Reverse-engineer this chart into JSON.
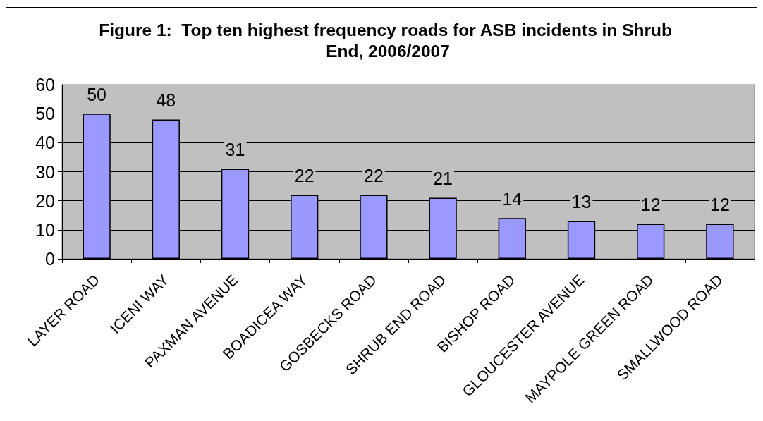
{
  "chart_data": {
    "type": "bar",
    "title": "Figure 1:  Top ten highest frequency roads for ASB incidents in Shrub End, 2006/2007",
    "categories": [
      "LAYER ROAD",
      "ICENI WAY",
      "PAXMAN AVENUE",
      "BOADICEA WAY",
      "GOSBECKS ROAD",
      "SHRUB END ROAD",
      "BISHOP ROAD",
      "GLOUCESTER AVENUE",
      "MAYPOLE GREEN ROAD",
      "SMALLWOOD ROAD"
    ],
    "values": [
      50,
      48,
      31,
      22,
      22,
      21,
      14,
      13,
      12,
      12
    ],
    "color": "#9999ff",
    "ylim": [
      0,
      60
    ],
    "yticks": [
      0,
      10,
      20,
      30,
      40,
      50,
      60
    ],
    "grid": "y",
    "data_labels": true
  }
}
